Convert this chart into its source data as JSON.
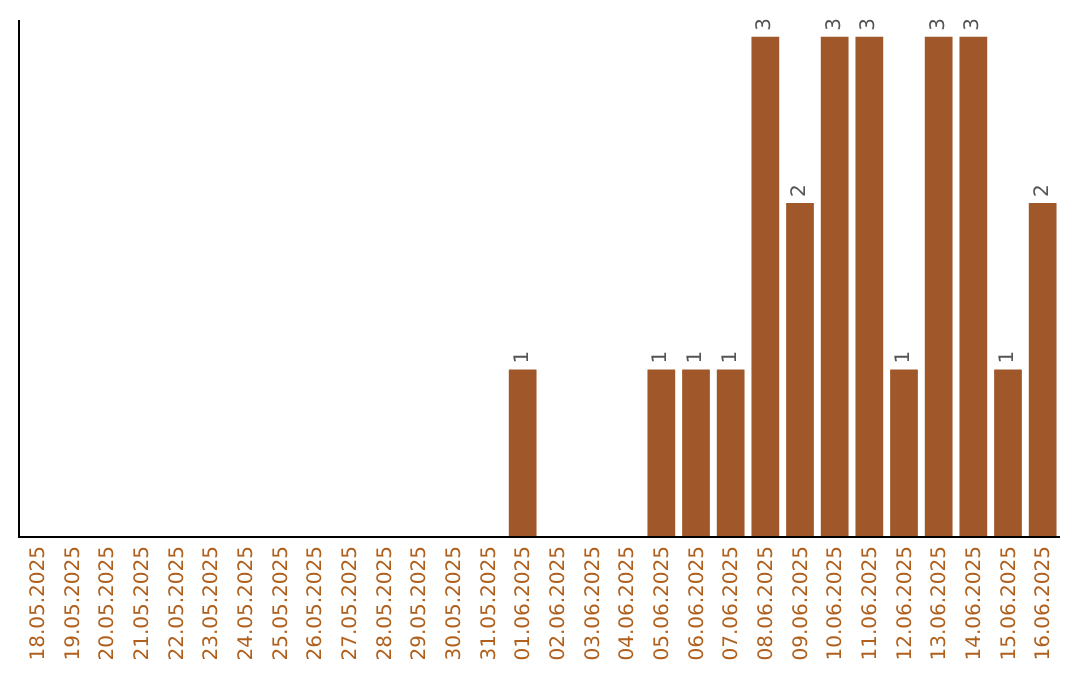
{
  "chart_data": {
    "type": "bar",
    "categories": [
      "18.05.2025",
      "19.05.2025",
      "20.05.2025",
      "21.05.2025",
      "22.05.2025",
      "23.05.2025",
      "24.05.2025",
      "25.05.2025",
      "26.05.2025",
      "27.05.2025",
      "28.05.2025",
      "29.05.2025",
      "30.05.2025",
      "31.05.2025",
      "01.06.2025",
      "02.06.2025",
      "03.06.2025",
      "04.06.2025",
      "05.06.2025",
      "06.06.2025",
      "07.06.2025",
      "08.06.2025",
      "09.06.2025",
      "10.06.2025",
      "11.06.2025",
      "12.06.2025",
      "13.06.2025",
      "14.06.2025",
      "15.06.2025",
      "16.06.2025"
    ],
    "values": [
      null,
      null,
      null,
      null,
      null,
      null,
      null,
      null,
      null,
      null,
      null,
      null,
      null,
      null,
      1,
      null,
      null,
      null,
      1,
      1,
      1,
      3,
      2,
      3,
      3,
      1,
      3,
      3,
      1,
      2
    ],
    "data_labels": true,
    "color": "#a0582a",
    "ylim": [
      0,
      3.1
    ],
    "tick_labels": "x",
    "grid": false,
    "legend": false
  }
}
